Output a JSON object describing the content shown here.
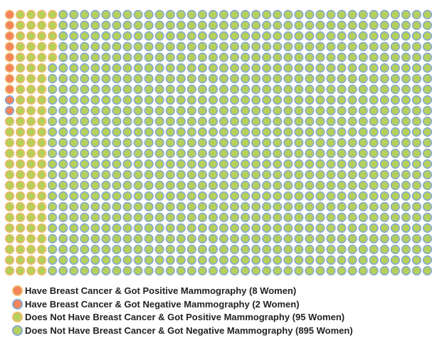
{
  "chart_data": {
    "type": "waffle",
    "title": "",
    "total": 1000,
    "columns": 40,
    "rows": 25,
    "fill_order": "column-major",
    "series": [
      {
        "name": "Have Breast Cancer & Got Positive Mammography (8 Women)",
        "value": 8,
        "fill": "#f4835b",
        "stroke": "#f0b768"
      },
      {
        "name": "Have Breast Cancer & Got Negative Mammography (2 Women)",
        "value": 2,
        "fill": "#f4835b",
        "stroke": "#86a8d0"
      },
      {
        "name": "Does Not Have Breast Cancer & Got Positive Mammography (95 Women)",
        "value": 95,
        "fill": "#b5d15a",
        "stroke": "#f0b768"
      },
      {
        "name": "Does Not Have Breast Cancer & Got Negative Mammography (895 Women)",
        "value": 895,
        "fill": "#b5d15a",
        "stroke": "#86a8d0"
      }
    ]
  }
}
